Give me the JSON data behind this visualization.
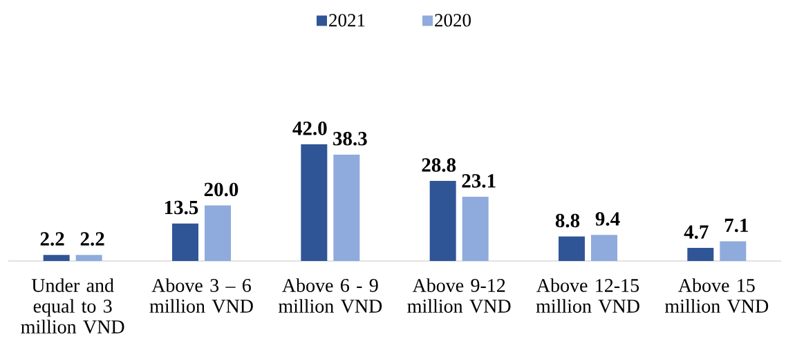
{
  "chart_data": {
    "type": "bar",
    "categories": [
      "Under and equal to 3 million VND",
      "Above 3 – 6 million VND",
      "Above 6 - 9 million VND",
      "Above 9-12 million VND",
      "Above 12-15 million VND",
      "Above 15 million VND"
    ],
    "series": [
      {
        "name": "2021",
        "color": "#2f5597",
        "values": [
          2.2,
          13.5,
          42.0,
          28.8,
          8.8,
          4.7
        ],
        "value_labels": [
          "2.2",
          "13.5",
          "42.0",
          "28.8",
          "8.8",
          "4.7"
        ]
      },
      {
        "name": "2020",
        "color": "#8faadc",
        "values": [
          2.2,
          20.0,
          38.3,
          23.1,
          9.4,
          7.1
        ],
        "value_labels": [
          "2.2",
          "20.0",
          "38.3",
          "23.1",
          "9.4",
          "7.1"
        ]
      }
    ],
    "legend": "top"
  }
}
